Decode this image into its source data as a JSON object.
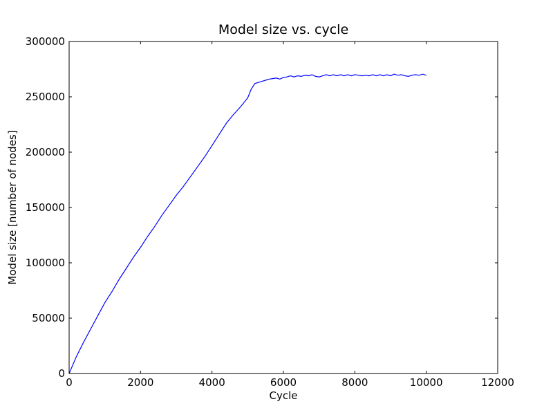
{
  "chart_data": {
    "type": "line",
    "title": "Model size vs. cycle",
    "xlabel": "Cycle",
    "ylabel": "Model size [number of nodes]",
    "xlim": [
      0,
      12000
    ],
    "ylim": [
      0,
      300000
    ],
    "xticks": [
      0,
      2000,
      4000,
      6000,
      8000,
      10000,
      12000
    ],
    "yticks": [
      0,
      50000,
      100000,
      150000,
      200000,
      250000,
      300000
    ],
    "grid": false,
    "series": [
      {
        "color": "#0000ff",
        "x": [
          0,
          200,
          400,
          600,
          800,
          1000,
          1200,
          1400,
          1600,
          1800,
          2000,
          2200,
          2400,
          2600,
          2800,
          3000,
          3200,
          3400,
          3600,
          3800,
          4000,
          4200,
          4400,
          4600,
          4800,
          5000,
          5100,
          5200,
          5300,
          5400,
          5500,
          5600,
          5700,
          5800,
          5900,
          6000,
          6100,
          6200,
          6300,
          6400,
          6500,
          6600,
          6700,
          6800,
          6900,
          7000,
          7100,
          7200,
          7300,
          7400,
          7500,
          7600,
          7700,
          7800,
          7900,
          8000,
          8100,
          8200,
          8300,
          8400,
          8500,
          8600,
          8700,
          8800,
          8900,
          9000,
          9100,
          9200,
          9300,
          9400,
          9500,
          9600,
          9700,
          9800,
          9900,
          10000
        ],
        "y": [
          0,
          15000,
          28000,
          40000,
          52000,
          64000,
          74000,
          85000,
          95000,
          105000,
          114000,
          124000,
          133000,
          143000,
          152000,
          161000,
          169000,
          178000,
          187000,
          196000,
          206000,
          216000,
          226000,
          234000,
          241000,
          249000,
          257000,
          262000,
          263000,
          264000,
          265000,
          266000,
          266500,
          267000,
          266000,
          267500,
          268000,
          269000,
          268000,
          269000,
          268500,
          269500,
          269000,
          270000,
          268500,
          268000,
          269000,
          270000,
          269000,
          270000,
          269000,
          270000,
          269000,
          270000,
          269000,
          270000,
          269500,
          269000,
          269500,
          269000,
          270000,
          269000,
          270000,
          269000,
          270000,
          269000,
          270500,
          269500,
          270000,
          269000,
          268500,
          269500,
          270000,
          269500,
          270500,
          269500
        ]
      }
    ]
  }
}
